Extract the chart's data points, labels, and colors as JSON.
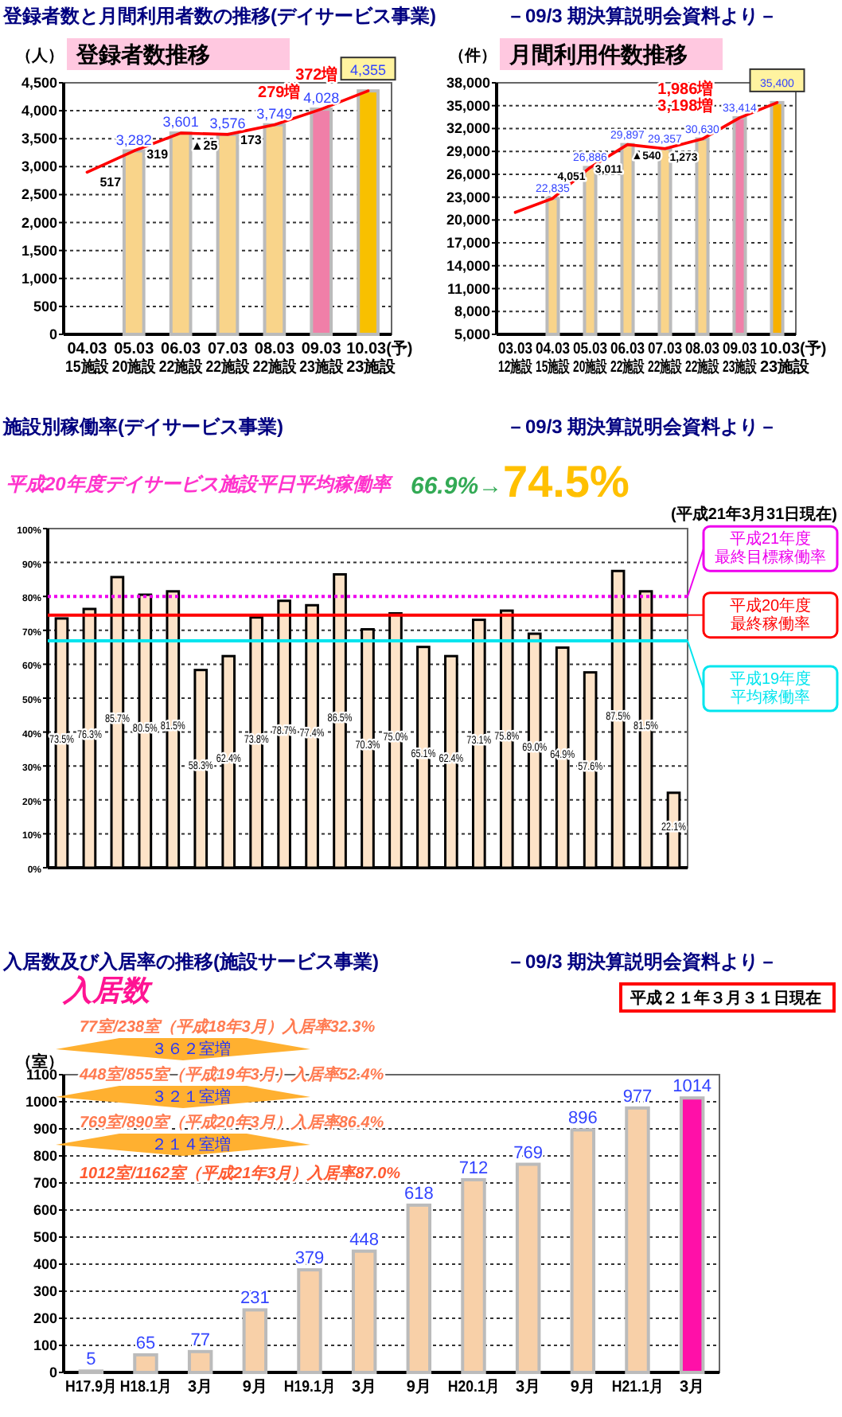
{
  "chart_data": [
    {
      "type": "bar",
      "title": "登録者数推移",
      "ylabel": "（人）",
      "grid": "y",
      "categories": [
        "04.03\n15施設",
        "05.03\n20施設",
        "06.03\n22施設",
        "07.03\n22施設",
        "08.03\n22施設",
        "09.03\n23施設",
        "10.03(予)\n23施設"
      ],
      "ylim": [
        0,
        4500
      ],
      "yticks": [
        0,
        500,
        {
          "value": 1000,
          "label": "1,000"
        },
        {
          "value": 1500,
          "label": "1,500"
        },
        {
          "value": 2000,
          "label": "2,000"
        },
        {
          "value": 2500,
          "label": "2,500"
        },
        {
          "value": 3000,
          "label": "3,000"
        },
        {
          "value": 3500,
          "label": "3,500"
        },
        {
          "value": 4000,
          "label": "4,000"
        },
        {
          "value": 4500,
          "label": "4,500"
        }
      ],
      "series": [
        {
          "type": "bar",
          "values": [
            null,
            3282,
            3601,
            3576,
            3749,
            4028,
            4355
          ],
          "colors": [
            null,
            "#f9d48a",
            "#f9d48a",
            "#f9d48a",
            "#f9d48a",
            "#f07fa8",
            "#f8c000"
          ],
          "value_labels": [
            null,
            "3,282",
            "3,601",
            "3,576",
            "3,749",
            "4,028",
            "4,355"
          ]
        },
        {
          "type": "line",
          "color": "#ff0000",
          "values": [
            2900,
            3282,
            3601,
            3576,
            3749,
            4028,
            4355
          ]
        }
      ],
      "annotations": [
        "登録者数と月間利用者数の推移(デイサービス事業)",
        "－09/3 期決算説明会資料より－",
        "517",
        "319",
        "▲25",
        "173",
        "279増",
        "372増"
      ]
    },
    {
      "type": "bar",
      "title": "月間利用件数推移",
      "ylabel": "（件）",
      "grid": "y",
      "categories": [
        "03.03\n12施設",
        "04.03\n15施設",
        "05.03\n20施設",
        "06.03\n22施設",
        "07.03\n22施設",
        "08.03\n22施設",
        "09.03\n23施設",
        "10.03(予)\n23施設"
      ],
      "ylim": [
        5000,
        38000
      ],
      "yticks": [
        {
          "value": 5000,
          "label": "5,000"
        },
        {
          "value": 8000,
          "label": "8,000"
        },
        {
          "value": 11000,
          "label": "11,000"
        },
        {
          "value": 14000,
          "label": "14,000"
        },
        {
          "value": 17000,
          "label": "17,000"
        },
        {
          "value": 20000,
          "label": "20,000"
        },
        {
          "value": 23000,
          "label": "23,000"
        },
        {
          "value": 26000,
          "label": "26,000"
        },
        {
          "value": 29000,
          "label": "29,000"
        },
        {
          "value": 32000,
          "label": "32,000"
        },
        {
          "value": 35000,
          "label": "35,000"
        },
        {
          "value": 38000,
          "label": "38,000"
        }
      ],
      "series": [
        {
          "type": "bar",
          "values": [
            null,
            22835,
            26886,
            29897,
            29357,
            30630,
            33414,
            35400
          ],
          "colors": [
            null,
            "#f9d48a",
            "#f9d48a",
            "#f9d48a",
            "#f9d48a",
            "#f9d48a",
            "#f07fa8",
            "#f8b000"
          ],
          "value_labels": [
            null,
            "22,835",
            "26,886",
            "29,897",
            "29,357",
            "30,630",
            "33,414",
            "35,400"
          ]
        },
        {
          "type": "line",
          "color": "#ff0000",
          "values": [
            21000,
            22835,
            26886,
            29897,
            29357,
            30630,
            33414,
            35400
          ]
        }
      ],
      "annotations": [
        "4,051",
        "3,011",
        "▲540",
        "1,273",
        "3,198増",
        "1,986増"
      ]
    },
    {
      "type": "bar",
      "title": "平成20年度デイサービス施設平日平均稼働率",
      "subtitle": "(平成21年3月31日現在)",
      "grid": "y",
      "categories": [
        null,
        null,
        null,
        null,
        null,
        null,
        null,
        null,
        null,
        null,
        null,
        null,
        null,
        null,
        null,
        null,
        null,
        null,
        null,
        null,
        null,
        null,
        null
      ],
      "values": [
        73.5,
        76.3,
        85.7,
        80.5,
        81.5,
        58.3,
        62.4,
        73.8,
        78.7,
        77.4,
        86.5,
        70.3,
        75.0,
        65.1,
        62.4,
        73.1,
        75.8,
        69.0,
        64.9,
        57.6,
        87.5,
        81.5,
        22.1
      ],
      "value_labels": [
        "73.5%",
        "76.3%",
        "85.7%",
        "80.5%",
        "81.5%",
        "58.3%",
        "62.4%",
        "73.8%",
        "78.7%",
        "77.4%",
        "86.5%",
        "70.3%",
        "75.0%",
        "65.1%",
        "62.4%",
        "73.1%",
        "75.8%",
        "69.0%",
        "64.9%",
        "57.6%",
        "87.5%",
        "81.5%",
        "22.1%"
      ],
      "color": "#fde3c8",
      "ylim": [
        0,
        100
      ],
      "yticks": [
        {
          "value": 0,
          "label": "0%"
        },
        {
          "value": 10,
          "label": "10%"
        },
        {
          "value": 20,
          "label": "20%"
        },
        {
          "value": 30,
          "label": "30%"
        },
        {
          "value": 40,
          "label": "40%"
        },
        {
          "value": 50,
          "label": "50%"
        },
        {
          "value": 60,
          "label": "60%"
        },
        {
          "value": 70,
          "label": "70%"
        },
        {
          "value": 80,
          "label": "80%"
        },
        {
          "value": 90,
          "label": "90%"
        },
        {
          "value": 100,
          "label": "100%"
        }
      ],
      "ref_lines": [
        {
          "axis": "y",
          "value": 80,
          "label": "平成21年度最終目標稼働率",
          "color": "#ee00ee",
          "line_style": "dotted"
        },
        {
          "axis": "y",
          "value": 74.5,
          "label": "平成20年度最終稼働率",
          "color": "#ff0000",
          "line_style": "solid"
        },
        {
          "axis": "y",
          "value": 66.9,
          "label": "平成19年度平均稼働率",
          "color": "#00e5ee",
          "line_style": "solid"
        }
      ],
      "annotations": [
        "施設別稼働率(デイサービス事業)",
        "－09/3 期決算説明会資料より－",
        "66.9%→",
        "74.5%"
      ]
    },
    {
      "type": "bar",
      "title": "入居数",
      "ylabel": "（室）",
      "grid": "y",
      "data_labels": true,
      "categories": [
        "H17.9月",
        "H18.1月",
        "3月",
        "9月",
        "H19.1月",
        "3月",
        "9月",
        "H20.1月",
        "3月",
        "9月",
        "H21.1月",
        "3月"
      ],
      "values": [
        5,
        65,
        77,
        231,
        379,
        448,
        618,
        712,
        769,
        896,
        977,
        1014
      ],
      "colors": [
        "#f8d0a8",
        "#f8d0a8",
        "#f8d0a8",
        "#f8d0a8",
        "#f8d0a8",
        "#f8d0a8",
        "#f8d0a8",
        "#f8d0a8",
        "#f8d0a8",
        "#f8d0a8",
        "#f8d0a8",
        "#ff10a8"
      ],
      "ylim": [
        0,
        1100
      ],
      "yticks": [
        0,
        100,
        200,
        300,
        400,
        500,
        600,
        700,
        800,
        900,
        1000,
        1100
      ],
      "annotations": [
        "入居数及び入居率の推移(施設サービス事業)",
        "－09/3 期決算説明会資料より－",
        "平成２１年３月３１日現在",
        "77室/238室（平成18年3月）入居率32.3%",
        "３６２室増",
        "448室/855室（平成19年3月）入居率52.4%",
        "３２１室増",
        "769室/890室（平成20年3月）入居率86.4%",
        "２１４室増",
        "1012室/1162室（平成21年3月）入居率87.0%"
      ]
    }
  ]
}
